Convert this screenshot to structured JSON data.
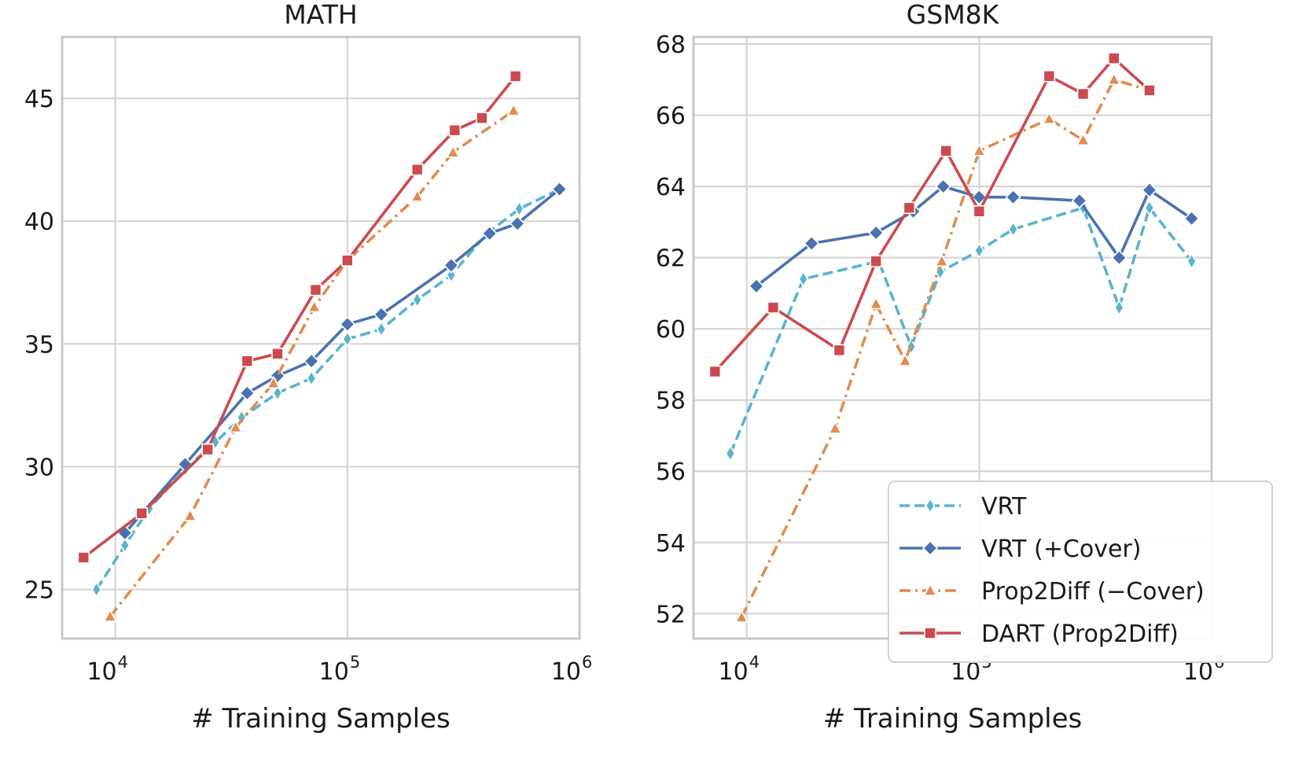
{
  "figure": {
    "shared_xlabel": "# Training Samples"
  },
  "series_styles": [
    {
      "name": "VRT",
      "color": "#5ab4cc",
      "dash": "dashed",
      "marker": "thin-diamond"
    },
    {
      "name": "VRT (+Cover)",
      "color": "#4a72b0",
      "dash": "solid",
      "marker": "diamond"
    },
    {
      "name": "Prop2Diff (−Cover)",
      "color": "#e08c52",
      "dash": "dashdot",
      "marker": "triangle"
    },
    {
      "name": "DART (Prop2Diff)",
      "color": "#cc4a4f",
      "dash": "solid",
      "marker": "square"
    }
  ],
  "legend": {
    "placement": "lower-right",
    "entries": [
      "VRT",
      "VRT (+Cover)",
      "Prop2Diff (−Cover)",
      "DART (Prop2Diff)"
    ]
  },
  "chart_data": [
    {
      "type": "line",
      "title": "MATH",
      "xlabel": "# Training Samples",
      "ylabel": "",
      "xscale": "log",
      "xlim": [
        5900,
        1000000
      ],
      "ylim": [
        23.0,
        47.5
      ],
      "xticks": [
        {
          "base": "10",
          "exp": "4",
          "value": 10000
        },
        {
          "base": "10",
          "exp": "5",
          "value": 100000
        },
        {
          "base": "10",
          "exp": "6",
          "value": 1000000
        }
      ],
      "yticks": [
        25,
        30,
        35,
        40,
        45
      ],
      "grid": true,
      "series": [
        {
          "name": "VRT",
          "x": [
            8300,
            11000,
            14000,
            20000,
            27000,
            35000,
            50000,
            70000,
            100000,
            140000,
            200000,
            280000,
            400000,
            550000,
            820000
          ],
          "y": [
            25.0,
            26.8,
            28.3,
            29.9,
            31.0,
            32.0,
            33.0,
            33.6,
            35.2,
            35.6,
            36.8,
            37.8,
            39.5,
            40.5,
            41.3
          ]
        },
        {
          "name": "VRT (+Cover)",
          "x": [
            11000,
            20000,
            37000,
            50000,
            70000,
            100000,
            140000,
            280000,
            410000,
            540000,
            820000
          ],
          "y": [
            27.3,
            30.1,
            33.0,
            33.7,
            34.3,
            35.8,
            36.2,
            38.2,
            39.5,
            39.9,
            41.3
          ]
        },
        {
          "name": "Prop2Diff (−Cover)",
          "x": [
            9500,
            21000,
            33000,
            48000,
            72000,
            100000,
            200000,
            285000,
            520000
          ],
          "y": [
            23.9,
            28.0,
            31.6,
            33.4,
            36.5,
            38.4,
            41.0,
            42.8,
            44.5
          ]
        },
        {
          "name": "DART (Prop2Diff)",
          "x": [
            7300,
            13000,
            25000,
            37000,
            50000,
            73000,
            100000,
            200000,
            290000,
            380000,
            530000
          ],
          "y": [
            26.3,
            28.1,
            30.7,
            34.3,
            34.6,
            37.2,
            38.4,
            42.1,
            43.7,
            44.2,
            45.9
          ]
        }
      ]
    },
    {
      "type": "line",
      "title": "GSM8K",
      "xlabel": "# Training Samples",
      "ylabel": "",
      "xscale": "log",
      "xlim": [
        5900,
        1000000
      ],
      "ylim": [
        51.3,
        68.2
      ],
      "xticks": [
        {
          "base": "10",
          "exp": "4",
          "value": 10000
        },
        {
          "base": "10",
          "exp": "5",
          "value": 100000
        },
        {
          "base": "10",
          "exp": "6",
          "value": 1000000
        }
      ],
      "yticks": [
        52,
        54,
        56,
        58,
        60,
        62,
        64,
        66,
        68
      ],
      "grid": true,
      "series": [
        {
          "name": "VRT",
          "x": [
            8500,
            17500,
            37000,
            51000,
            68000,
            100000,
            140000,
            280000,
            400000,
            540000,
            820000
          ],
          "y": [
            56.5,
            61.4,
            61.9,
            59.5,
            61.6,
            62.2,
            62.8,
            63.4,
            60.6,
            63.4,
            61.9
          ]
        },
        {
          "name": "VRT (+Cover)",
          "x": [
            11000,
            19000,
            36000,
            52000,
            70000,
            100000,
            140000,
            270000,
            400000,
            540000,
            820000
          ],
          "y": [
            61.2,
            62.4,
            62.7,
            63.3,
            64.0,
            63.7,
            63.7,
            63.6,
            62.0,
            63.9,
            63.1
          ]
        },
        {
          "name": "Prop2Diff (−Cover)",
          "x": [
            9500,
            24000,
            36000,
            48000,
            69000,
            100000,
            200000,
            280000,
            380000,
            540000
          ],
          "y": [
            51.9,
            57.2,
            60.7,
            59.1,
            61.9,
            65.0,
            65.9,
            65.3,
            67.0,
            66.7
          ]
        },
        {
          "name": "DART (Prop2Diff)",
          "x": [
            7300,
            13000,
            25000,
            36000,
            50000,
            72000,
            100000,
            200000,
            280000,
            380000,
            540000
          ],
          "y": [
            58.8,
            60.6,
            59.4,
            61.9,
            63.4,
            65.0,
            63.3,
            67.1,
            66.6,
            67.6,
            66.7
          ]
        }
      ]
    }
  ]
}
